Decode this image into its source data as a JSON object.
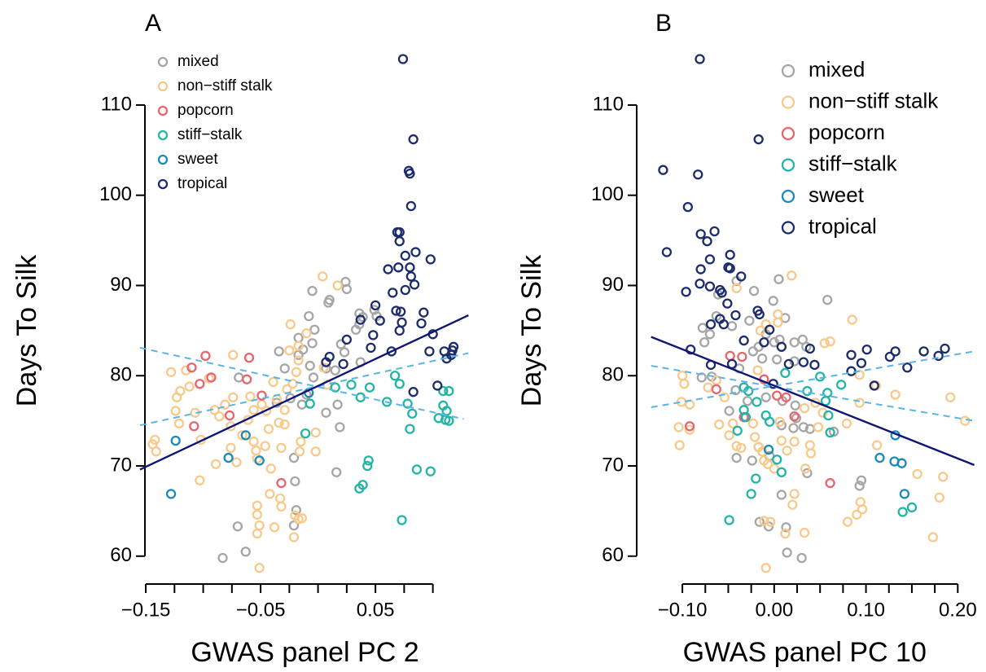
{
  "chart_data": [
    {
      "type": "scatter",
      "title": "A",
      "xlabel": "GWAS panel PC 2",
      "ylabel": "Days To Silk",
      "xlim": [
        -0.155,
        0.135
      ],
      "ylim": [
        57,
        116
      ],
      "xticks": [
        {
          "value": -0.15,
          "label": "−0.15"
        },
        {
          "value": -0.05,
          "label": "−0.05"
        },
        0.05
      ],
      "xminorticks": [
        -0.125,
        -0.1,
        -0.075,
        -0.025,
        0,
        0.025,
        0.075,
        0.1
      ],
      "yticks": [
        60,
        70,
        80,
        90,
        100,
        110
      ],
      "legend": "top-left",
      "series": [
        {
          "name": "mixed",
          "color": "#a6a6a6",
          "x": [
            -0.063,
            -0.083,
            -0.07,
            -0.021,
            -0.019,
            0.016,
            -0.02,
            0.036,
            0.025,
            -0.005,
            0.01,
            0.009,
            0.024,
            0.039,
            0.049,
            0.051,
            0.033,
            -0.008,
            -0.017,
            -0.003,
            -0.013,
            -0.005,
            -0.017,
            -0.034,
            -0.029,
            -0.007,
            0.023,
            0.02,
            0.007,
            0.015,
            -0.004,
            -0.01,
            -0.024,
            -0.036,
            -0.014,
            0.007,
            0.017,
            0.019,
            -0.069,
            -0.021,
            0.037,
            0.036
          ],
          "y": [
            60.5,
            59.8,
            63.3,
            63.4,
            65.1,
            69.3,
            68.3,
            86.9,
            89.6,
            89.4,
            88.4,
            88.1,
            90.4,
            86.5,
            87.3,
            86.6,
            85.1,
            86.6,
            84.2,
            85.1,
            82.9,
            83.6,
            82.3,
            82.7,
            80.8,
            81.1,
            82.6,
            83.5,
            80.8,
            80.6,
            79.8,
            77.9,
            77.5,
            77,
            76.8,
            75.9,
            76.8,
            74.3,
            79.8,
            70.9,
            81.5,
            85.7
          ]
        },
        {
          "name": "non−stiff stalk",
          "color": "#f9c98c",
          "x": [
            -0.142,
            -0.141,
            -0.144,
            -0.128,
            -0.115,
            -0.123,
            -0.12,
            -0.112,
            -0.124,
            -0.121,
            -0.102,
            -0.103,
            -0.09,
            -0.086,
            -0.081,
            -0.074,
            -0.074,
            -0.076,
            -0.076,
            -0.071,
            -0.089,
            -0.059,
            -0.061,
            -0.056,
            -0.054,
            -0.053,
            -0.049,
            -0.045,
            -0.043,
            -0.046,
            -0.041,
            -0.053,
            -0.053,
            -0.051,
            -0.053,
            -0.051,
            -0.042,
            -0.038,
            -0.032,
            -0.033,
            -0.032,
            -0.029,
            -0.029,
            -0.036,
            -0.027,
            -0.022,
            -0.019,
            -0.017,
            -0.025,
            -0.024,
            -0.01,
            -0.017,
            -0.015,
            -0.016,
            -0.02,
            -0.021,
            -0.017,
            -0.014,
            0.004,
            0.017,
            0.005,
            -0.002,
            -0.002,
            0.008,
            -0.095,
            -0.107,
            -0.066,
            -0.056,
            -0.039,
            -0.034
          ],
          "y": [
            72.9,
            71.6,
            72.4,
            80.4,
            80.6,
            77.6,
            78.3,
            78.8,
            76.1,
            74.7,
            72.9,
            68.4,
            76.2,
            75.5,
            76.8,
            82.3,
            77.6,
            74.4,
            72,
            70.4,
            70.2,
            77.7,
            75.1,
            72.7,
            71.7,
            70.8,
            76.8,
            76.1,
            74.1,
            72.2,
            69.7,
            65.6,
            64.6,
            63.4,
            62.5,
            58.7,
            66.9,
            63.2,
            65.5,
            66.4,
            72,
            74.6,
            76.2,
            77.4,
            78.5,
            79.1,
            80.4,
            81.7,
            82.8,
            85.7,
            84.7,
            83.3,
            72.7,
            71.6,
            64.5,
            62.1,
            64.1,
            64.2,
            91,
            90,
            80.9,
            73.7,
            71.6,
            79,
            79.7,
            75.9,
            73.4,
            76.2,
            79.3,
            74.8
          ]
        },
        {
          "name": "popcorn",
          "color": "#e8646e",
          "x": [
            -0.098,
            -0.11,
            -0.093,
            -0.103,
            -0.06,
            -0.062,
            -0.108,
            -0.077,
            -0.049,
            -0.032
          ],
          "y": [
            82.2,
            80.9,
            79.8,
            79.1,
            82,
            79.6,
            74.4,
            75.6,
            77.8,
            68.1
          ]
        },
        {
          "name": "stiff−stalk",
          "color": "#22b5a6",
          "x": [
            0.015,
            0.029,
            0.037,
            0.045,
            0.06,
            0.078,
            0.082,
            0.08,
            0.109,
            0.114,
            0.109,
            0.112,
            0.111,
            0.114,
            0.105,
            0.067,
            0.071,
            0.044,
            0.043,
            0.086,
            0.098,
            0.036,
            0.039,
            0.073,
            -0.011,
            -0.007
          ],
          "y": [
            78.7,
            79,
            77.6,
            78.7,
            77.1,
            76.9,
            75.8,
            74.1,
            78.3,
            78.3,
            76.7,
            76.1,
            75.1,
            75,
            75.3,
            80,
            79.1,
            70.6,
            70,
            69.6,
            69.4,
            67.5,
            67.9,
            64,
            73.6,
            76.9
          ]
        },
        {
          "name": "sweet",
          "color": "#1b8ab8",
          "x": [
            -0.124,
            -0.128,
            -0.078,
            -0.063,
            -0.051,
            -0.008
          ],
          "y": [
            72.8,
            66.9,
            70.9,
            73.4,
            70.6,
            78.1
          ]
        },
        {
          "name": "tropical",
          "color": "#1c2b6b",
          "x": [
            0.074,
            0.083,
            0.079,
            0.08,
            0.081,
            0.069,
            0.071,
            0.071,
            0.076,
            0.085,
            0.098,
            0.08,
            0.07,
            0.061,
            0.081,
            0.076,
            0.084,
            0.065,
            0.072,
            0.05,
            0.068,
            0.092,
            0.09,
            0.073,
            0.054,
            0.037,
            0.071,
            0.1,
            0.097,
            0.118,
            0.117,
            0.116,
            0.11,
            0.112,
            0.046,
            0.025,
            0.007,
            0.01,
            0.048,
            0.064,
            0.083,
            0.104,
            0.022
          ],
          "y": [
            115.1,
            106.2,
            102.7,
            102.4,
            98.8,
            95.9,
            95.9,
            94.9,
            93.3,
            93.7,
            92.9,
            92,
            92,
            91.8,
            91,
            89.5,
            90.1,
            89.2,
            87.1,
            87.8,
            87.2,
            87,
            85.8,
            85.9,
            86.1,
            86.2,
            85,
            84.6,
            82.7,
            83.2,
            82.8,
            82.3,
            82.7,
            81.9,
            83.1,
            84,
            81.5,
            82.1,
            84.5,
            82.7,
            78.2,
            78.9,
            81.3
          ]
        }
      ],
      "lines": [
        {
          "style": "dashed",
          "color": "#5ab4e6",
          "x": [
            -0.155,
            0.127
          ],
          "y": [
            83.1,
            75.2
          ]
        },
        {
          "style": "dashed",
          "color": "#5ab4e6",
          "x": [
            -0.155,
            0.131
          ],
          "y": [
            74.5,
            82.5
          ]
        },
        {
          "style": "solid",
          "color": "#0f1673",
          "x": [
            -0.155,
            0.131
          ],
          "y": [
            69.6,
            86.7
          ]
        }
      ]
    },
    {
      "type": "scatter",
      "title": "B",
      "xlabel": "GWAS panel PC 10",
      "ylabel": "Days To Silk",
      "xlim": [
        -0.14,
        0.225
      ],
      "ylim": [
        57,
        116
      ],
      "xticks": [
        {
          "value": -0.1,
          "label": "−0.10"
        },
        {
          "value": 0,
          "label": "0.00"
        },
        {
          "value": 0.1,
          "label": "0.10"
        },
        {
          "value": 0.2,
          "label": "0.20"
        }
      ],
      "xminorticks": [
        -0.075,
        -0.05,
        -0.025,
        0.025,
        0.05,
        0.075,
        0.125,
        0.15,
        0.175
      ],
      "yticks": [
        60,
        70,
        80,
        90,
        100,
        110
      ],
      "legend": "top-right",
      "series": [
        {
          "name": "mixed",
          "color": "#a6a6a6",
          "x": [
            0.014,
            0.03,
            -0.016,
            -0.006,
            0.013,
            0.008,
            0.036,
            -0.041,
            -0.024,
            -0.017,
            0.008,
            0.021,
            0.032,
            0.039,
            0.065,
            0.093,
            0.095,
            -0.061,
            -0.041,
            -0.022,
            0.005,
            -0.001,
            0.012,
            0.058,
            -0.063,
            -0.078,
            -0.07,
            -0.046,
            -0.027,
            -0.017,
            -0.009,
            0,
            0.006,
            0.022,
            0.031,
            0.035,
            -0.023,
            -0.013,
            0.003,
            0.022,
            -0.038,
            -0.068,
            -0.079,
            -0.076,
            -0.042,
            -0.029,
            -0.009,
            0.009,
            0.024,
            -0.049,
            -0.005,
            0.023
          ],
          "y": [
            60.4,
            59.8,
            63.8,
            63.3,
            63.2,
            66.8,
            69.2,
            70.9,
            70.6,
            72.1,
            74.5,
            74.2,
            74.3,
            74.1,
            73.8,
            67.8,
            68.4,
            89,
            90.5,
            89.4,
            90.7,
            88.3,
            86.4,
            88.4,
            86.6,
            85.3,
            84.6,
            85.5,
            86.1,
            83.2,
            84.6,
            83.7,
            84,
            83.7,
            84,
            83.2,
            82.7,
            81.9,
            81.8,
            81.6,
            80.8,
            79.9,
            79.8,
            83.7,
            78.4,
            77.2,
            77.6,
            77.2,
            75.3,
            76.1,
            71.1,
            76.7
          ]
        },
        {
          "name": "non−stiff stalk",
          "color": "#f9c98c",
          "x": [
            -0.009,
            -0.004,
            0.033,
            0.173,
            0.094,
            0.096,
            0.08,
            0.09,
            0.156,
            0.18,
            0.112,
            0.184,
            0.208,
            0.192,
            0.132,
            0.093,
            0.093,
            0.085,
            0.055,
            0.061,
            0.019,
            0.004,
            0.004,
            -0.009,
            -0.015,
            -0.041,
            -0.1,
            -0.098,
            -0.101,
            -0.092,
            -0.104,
            -0.092,
            -0.103,
            -0.06,
            -0.049,
            -0.072,
            -0.063,
            -0.054,
            -0.045,
            -0.041,
            -0.036,
            -0.023,
            -0.021,
            -0.017,
            -0.013,
            -0.011,
            -0.007,
            0,
            0.006,
            0.008,
            0.014,
            0.022,
            0.04,
            0.039,
            0.034,
            0.022,
            0.02,
            0.012,
            -0.011,
            0.048,
            0.053,
            0.033,
            0.045,
            0.079,
            0.111,
            -0.018
          ],
          "y": [
            58.7,
            63.8,
            62.6,
            62.1,
            66,
            65.2,
            63.8,
            64.6,
            69.1,
            66.5,
            72.3,
            68.8,
            75,
            77.6,
            77.9,
            77,
            80.1,
            86.2,
            83.6,
            83.8,
            91.1,
            86.8,
            85.9,
            85.7,
            85,
            89.7,
            80,
            79.1,
            77.1,
            76.8,
            74.3,
            74,
            72.3,
            74.6,
            73.4,
            78.7,
            79.5,
            77.6,
            74.7,
            72.2,
            72,
            74.7,
            73.2,
            72.1,
            71.6,
            70.6,
            70.2,
            69.7,
            74.9,
            72.8,
            71.7,
            72.7,
            71.4,
            72.3,
            69.7,
            66.9,
            65.7,
            62.5,
            63.9,
            74.3,
            75.9,
            76.4,
            77,
            74.7,
            78.9,
            80.6
          ]
        },
        {
          "name": "popcorn",
          "color": "#e8646e",
          "x": [
            -0.048,
            -0.035,
            -0.063,
            -0.011,
            -0.092,
            -0.033,
            0.013,
            0.022,
            0.061,
            0.003
          ],
          "y": [
            82.2,
            82.1,
            78.5,
            79.6,
            74.4,
            75.4,
            77.6,
            75.5,
            68.1,
            77.8
          ]
        },
        {
          "name": "stiff−stalk",
          "color": "#22b5a6",
          "x": [
            0.05,
            0.073,
            0.058,
            0.056,
            0.036,
            0.012,
            -0.028,
            -0.033,
            -0.033,
            -0.031,
            -0.04,
            -0.019,
            -0.009,
            -0.005,
            0.003,
            0.008,
            -0.025,
            -0.02,
            -0.049,
            0.14,
            0.15,
            0.061,
            0.059
          ],
          "y": [
            79.9,
            79,
            78.1,
            77.2,
            78.3,
            80.3,
            78.3,
            78.7,
            76.2,
            75.4,
            73.9,
            77.1,
            75.6,
            74.9,
            70.7,
            69.3,
            66.9,
            68.6,
            64,
            64.9,
            65.4,
            73.7,
            75.6
          ]
        },
        {
          "name": "sweet",
          "color": "#1b8ab8",
          "x": [
            0.115,
            0.131,
            0.139,
            0.132,
            0.142,
            -0.006
          ],
          "y": [
            70.9,
            70.5,
            70.3,
            73.4,
            66.9,
            71.8
          ]
        },
        {
          "name": "tropical",
          "color": "#1c2b6b",
          "x": [
            -0.081,
            -0.121,
            -0.083,
            -0.017,
            -0.094,
            -0.117,
            -0.08,
            -0.065,
            -0.073,
            -0.07,
            -0.048,
            -0.08,
            -0.05,
            -0.048,
            -0.036,
            -0.059,
            -0.081,
            -0.07,
            -0.057,
            -0.051,
            -0.096,
            -0.059,
            -0.069,
            -0.055,
            -0.042,
            -0.018,
            -0.016,
            -0.005,
            -0.011,
            -0.033,
            -0.046,
            0.008,
            0.039,
            0.044,
            0.084,
            0.101,
            0.095,
            0.126,
            0.132,
            0.163,
            0.179,
            0.186,
            0.145,
            0.109,
            0.084,
            0.016,
            0.032,
            -0.001,
            -0.069,
            -0.091
          ],
          "y": [
            115.1,
            102.8,
            102.3,
            106.2,
            98.7,
            93.7,
            95.7,
            96,
            94.9,
            92.9,
            93.4,
            91.8,
            92,
            91.9,
            91,
            89.5,
            90.2,
            89.9,
            89.2,
            88,
            89.3,
            86.3,
            85.7,
            85.7,
            86.7,
            87.2,
            86.8,
            85.1,
            83.7,
            83.9,
            81.3,
            83.2,
            83,
            81.2,
            82.3,
            82.9,
            81.4,
            82.1,
            82.7,
            82.7,
            82.2,
            83,
            80.9,
            78.9,
            80.5,
            81.3,
            81.5,
            79.1,
            81.2,
            82.9
          ]
        }
      ],
      "lines": [
        {
          "style": "dashed",
          "color": "#5ab4e6",
          "x": [
            -0.134,
            0.218
          ],
          "y": [
            81.1,
            75
          ]
        },
        {
          "style": "dashed",
          "color": "#5ab4e6",
          "x": [
            -0.134,
            0.218
          ],
          "y": [
            76.5,
            82.7
          ]
        },
        {
          "style": "solid",
          "color": "#0f1673",
          "x": [
            -0.134,
            0.218
          ],
          "y": [
            84.3,
            70.1
          ]
        }
      ]
    }
  ]
}
